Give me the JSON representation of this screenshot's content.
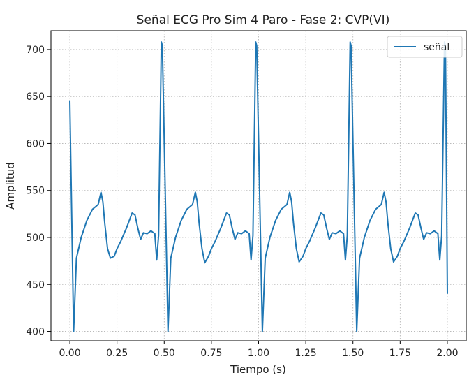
{
  "chart_data": {
    "type": "line",
    "title": "Señal ECG Pro Sim 4 Paro - Fase 2: CVP(VI)",
    "xlabel": "Tiempo (s)",
    "ylabel": "Amplitud",
    "xlim": [
      -0.1,
      2.1
    ],
    "ylim": [
      390,
      720
    ],
    "xticks": [
      0.0,
      0.25,
      0.5,
      0.75,
      1.0,
      1.25,
      1.5,
      1.75,
      2.0
    ],
    "xtick_labels": [
      "0.00",
      "0.25",
      "0.50",
      "0.75",
      "1.00",
      "1.25",
      "1.50",
      "1.75",
      "2.00"
    ],
    "yticks": [
      400,
      450,
      500,
      550,
      600,
      650,
      700
    ],
    "ytick_labels": [
      "400",
      "450",
      "500",
      "550",
      "600",
      "650",
      "700"
    ],
    "grid": true,
    "legend": {
      "placement": "top-right",
      "entries": [
        "señal"
      ]
    },
    "series": [
      {
        "name": "señal",
        "color": "#1f77b4",
        "x": [
          0.0,
          0.02,
          0.035,
          0.06,
          0.09,
          0.12,
          0.15,
          0.165,
          0.175,
          0.185,
          0.2,
          0.215,
          0.235,
          0.25,
          0.27,
          0.3,
          0.33,
          0.345,
          0.36,
          0.375,
          0.39,
          0.41,
          0.43,
          0.45,
          0.46,
          0.47,
          0.485,
          0.49,
          0.52,
          0.535,
          0.56,
          0.59,
          0.62,
          0.65,
          0.665,
          0.675,
          0.685,
          0.7,
          0.715,
          0.735,
          0.75,
          0.77,
          0.8,
          0.83,
          0.845,
          0.86,
          0.875,
          0.89,
          0.91,
          0.93,
          0.95,
          0.96,
          0.97,
          0.985,
          0.99,
          1.02,
          1.035,
          1.06,
          1.09,
          1.12,
          1.15,
          1.165,
          1.175,
          1.185,
          1.2,
          1.215,
          1.235,
          1.25,
          1.27,
          1.3,
          1.33,
          1.345,
          1.36,
          1.375,
          1.39,
          1.41,
          1.43,
          1.45,
          1.46,
          1.47,
          1.485,
          1.49,
          1.52,
          1.535,
          1.56,
          1.59,
          1.62,
          1.65,
          1.665,
          1.675,
          1.685,
          1.7,
          1.715,
          1.735,
          1.75,
          1.77,
          1.8,
          1.83,
          1.845,
          1.86,
          1.875,
          1.89,
          1.91,
          1.93,
          1.95,
          1.96,
          1.97,
          1.985,
          1.99,
          2.0
        ],
        "y": [
          646,
          400,
          478,
          500,
          518,
          530,
          535,
          548,
          538,
          515,
          488,
          478,
          480,
          488,
          496,
          510,
          526,
          524,
          510,
          498,
          505,
          504,
          507,
          504,
          476,
          502,
          708,
          704,
          400,
          478,
          500,
          518,
          530,
          535,
          548,
          538,
          515,
          488,
          473,
          480,
          488,
          496,
          510,
          526,
          524,
          510,
          498,
          505,
          504,
          507,
          504,
          476,
          502,
          708,
          704,
          400,
          478,
          500,
          518,
          530,
          535,
          548,
          538,
          515,
          488,
          474,
          480,
          488,
          496,
          510,
          526,
          524,
          510,
          498,
          505,
          504,
          507,
          504,
          476,
          502,
          708,
          704,
          400,
          478,
          500,
          518,
          530,
          535,
          548,
          538,
          515,
          488,
          474,
          480,
          488,
          496,
          510,
          526,
          524,
          510,
          498,
          505,
          504,
          507,
          504,
          476,
          502,
          708,
          704,
          440
        ]
      }
    ]
  }
}
